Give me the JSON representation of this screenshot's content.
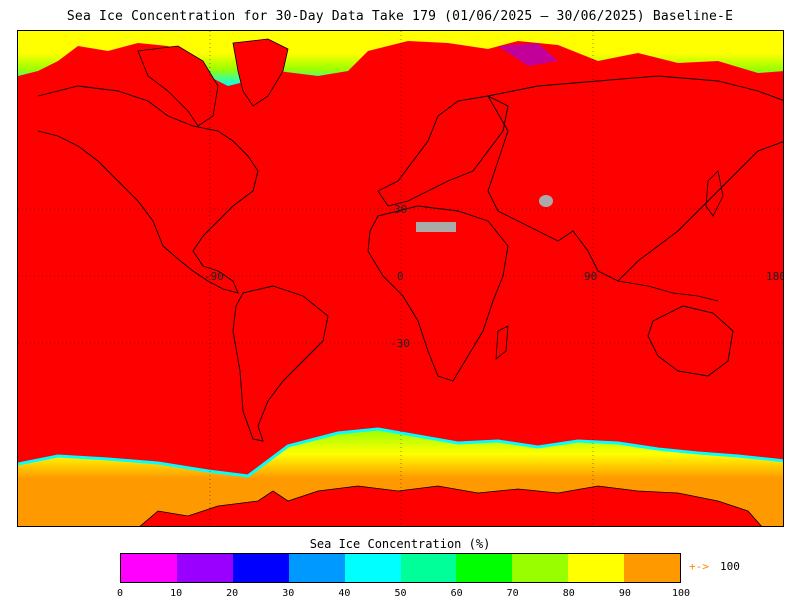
{
  "title": "Sea Ice Concentration for 30-Day Data Take 179 (01/06/2025 – 30/06/2025) Baseline-E",
  "map": {
    "background_color": "#ff0000",
    "grid_labels": {
      "lat_30": "30",
      "lat_0": "0",
      "lat_m30": "-30",
      "lon_m90": "-90",
      "lon_0": "0",
      "lon_90": "90",
      "lon_180": "180"
    }
  },
  "colorbar": {
    "title": "Sea Ice Concentration (%)",
    "colors": [
      "#ff00ff",
      "#9900ff",
      "#0000ff",
      "#0099ff",
      "#00ffff",
      "#00ff99",
      "#00ff00",
      "#99ff00",
      "#ffff00",
      "#ff9900"
    ],
    "ticks": [
      "0",
      "10",
      "20",
      "30",
      "40",
      "50",
      "60",
      "70",
      "80",
      "90",
      "100"
    ],
    "overflow_arrow": "+->",
    "overflow_value": "100"
  }
}
